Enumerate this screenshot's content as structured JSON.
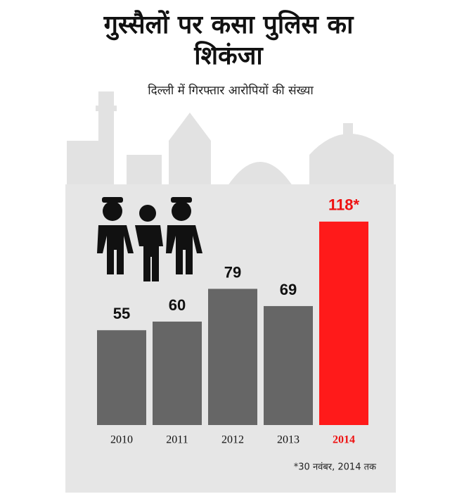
{
  "chart_data": {
    "type": "bar",
    "title": "गुस्सैलों पर कसा पुलिस का शिकंजा",
    "subtitle": "दिल्ली में गिरफ्तार आरोपियों की संख्या",
    "categories": [
      "2010",
      "2011",
      "2012",
      "2013",
      "2014"
    ],
    "values": [
      55,
      60,
      79,
      69,
      118
    ],
    "value_labels": [
      "55",
      "60",
      "79",
      "69",
      "118*"
    ],
    "colors": [
      "#666666",
      "#666666",
      "#666666",
      "#666666",
      "#ff1a1a"
    ],
    "label_colors": [
      "#111111",
      "#111111",
      "#111111",
      "#111111",
      "#ee1111"
    ],
    "footnote": "*30 नवंबर, 2014 तक"
  }
}
